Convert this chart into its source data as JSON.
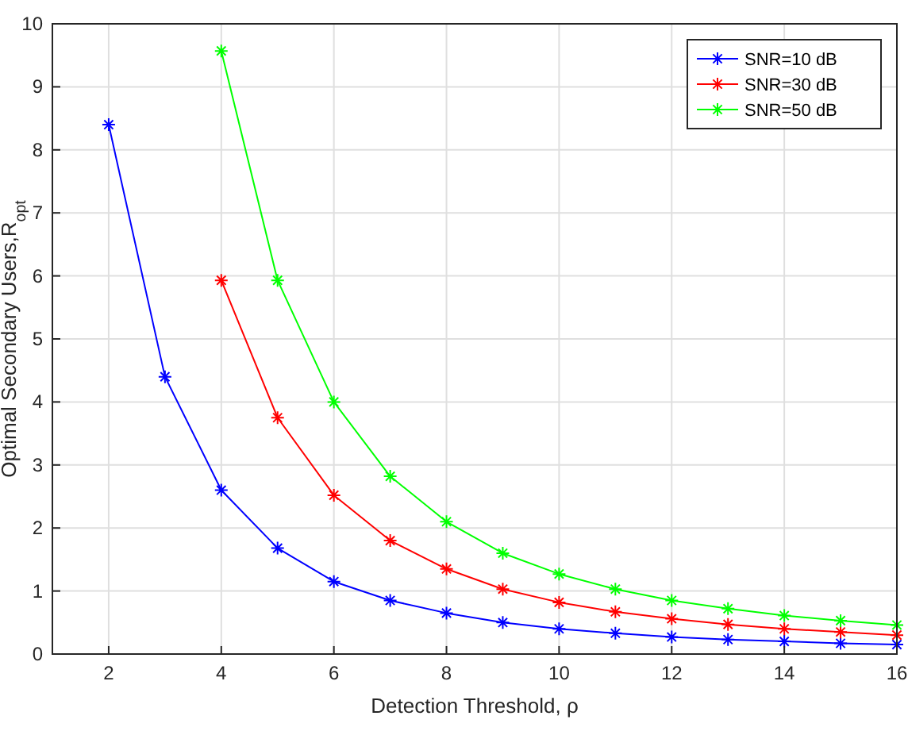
{
  "chart_data": {
    "type": "line",
    "xlabel": "Detection Threshold, ρ",
    "ylabel": "Optimal Secondary Users,R$_{opt}$",
    "x": [
      2,
      3,
      4,
      5,
      6,
      7,
      8,
      9,
      10,
      11,
      12,
      13,
      14,
      15,
      16
    ],
    "series": [
      {
        "name": "SNR=10 dB",
        "color": "#0000ff",
        "values": [
          8.4,
          4.4,
          2.6,
          1.68,
          1.15,
          0.85,
          0.65,
          0.5,
          0.4,
          0.33,
          0.27,
          0.23,
          0.2,
          0.17,
          0.15
        ]
      },
      {
        "name": "SNR=30 dB",
        "color": "#ff0000",
        "values": [
          null,
          null,
          5.93,
          3.75,
          2.52,
          1.8,
          1.35,
          1.03,
          0.82,
          0.67,
          0.56,
          0.47,
          0.4,
          0.35,
          0.3
        ]
      },
      {
        "name": "SNR=50 dB",
        "color": "#00ff00",
        "values": [
          null,
          null,
          9.57,
          5.93,
          4.0,
          2.82,
          2.1,
          1.6,
          1.27,
          1.03,
          0.85,
          0.72,
          0.61,
          0.53,
          0.46
        ]
      }
    ],
    "xlim": [
      1,
      16
    ],
    "xticks": [
      2,
      4,
      6,
      8,
      10,
      12,
      14,
      16
    ],
    "ylim": [
      0,
      10
    ],
    "yticks": [
      0,
      1,
      2,
      3,
      4,
      5,
      6,
      7,
      8,
      9,
      10
    ],
    "grid": true,
    "legend": "top right",
    "marker": "cross",
    "line_style": "solid"
  }
}
